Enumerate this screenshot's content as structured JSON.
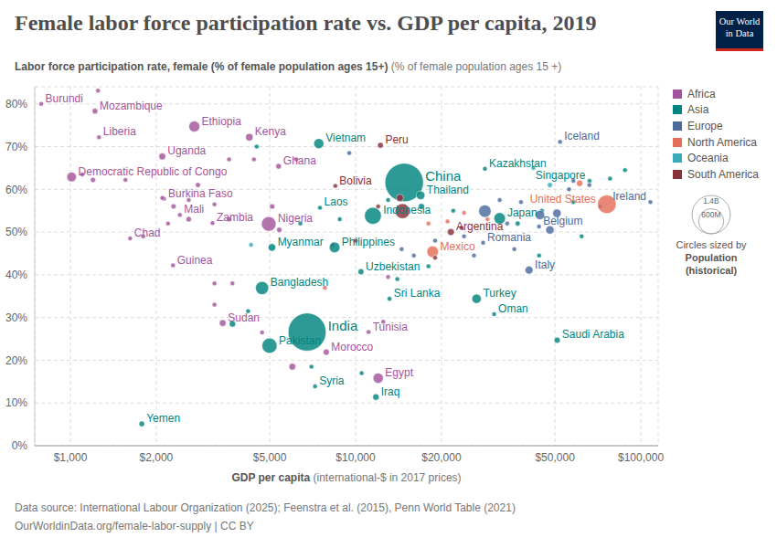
{
  "chart_data": {
    "type": "scatter",
    "title": "Female labor force participation rate vs. GDP per capita, 2019",
    "subtitle": "Labor force participation rate, female (% of female population ages 15+)",
    "subtitle_unit": "(% of female population ages 15 +)",
    "xlabel": "GDP per capita",
    "xlabel_unit": "(international-$ in 2017 prices)",
    "source": "Data source: International Labour Organization (2025); Feenstra et al. (2015), Penn World Table (2021)",
    "footer": "OurWorldinData.org/female-labor-supply | CC BY",
    "logo": [
      "Our World",
      "in Data"
    ],
    "log": "x",
    "grid": true,
    "legend": "right",
    "xlim": [
      750,
      115000
    ],
    "xticks": [
      {
        "value": 1000,
        "label": "$1,000"
      },
      {
        "value": 2000,
        "label": "$2,000"
      },
      {
        "value": 5000,
        "label": "$5,000"
      },
      {
        "value": 10000,
        "label": "$10,000"
      },
      {
        "value": 20000,
        "label": "$20,000"
      },
      {
        "value": 50000,
        "label": "$50,000"
      },
      {
        "value": 100000,
        "label": "$100,000"
      }
    ],
    "ylim": [
      0,
      84
    ],
    "yticks": [
      {
        "value": 0,
        "label": "0%"
      },
      {
        "value": 10,
        "label": "10%"
      },
      {
        "value": 20,
        "label": "20%"
      },
      {
        "value": 30,
        "label": "30%"
      },
      {
        "value": 40,
        "label": "40%"
      },
      {
        "value": 50,
        "label": "50%"
      },
      {
        "value": 60,
        "label": "60%"
      },
      {
        "value": 70,
        "label": "70%"
      },
      {
        "value": 80,
        "label": "80%"
      }
    ],
    "size_legend": {
      "title": [
        "Circles sized by",
        "Population",
        "(historical)"
      ],
      "circles": [
        {
          "value": 1400000000,
          "label": "1.4B"
        },
        {
          "value": 600000000,
          "label": "600M"
        }
      ]
    },
    "series": [
      {
        "name": "Africa",
        "color": "#a2559c",
        "values": [
          {
            "x": 790,
            "y": 80.0,
            "population": 11500000,
            "label": "Burundi"
          },
          {
            "x": 1220,
            "y": 78.3,
            "population": 30000000,
            "label": "Mozambique"
          },
          {
            "x": 1260,
            "y": 72.2,
            "population": 4900000,
            "label": "Liberia"
          },
          {
            "x": 2720,
            "y": 74.7,
            "population": 112000000,
            "label": "Ethiopia"
          },
          {
            "x": 4240,
            "y": 72.2,
            "population": 52000000,
            "label": "Kenya"
          },
          {
            "x": 2100,
            "y": 67.7,
            "population": 44000000,
            "label": "Uganda"
          },
          {
            "x": 1010,
            "y": 62.9,
            "population": 87000000,
            "label": "Democratic Republic of Congo"
          },
          {
            "x": 5370,
            "y": 65.4,
            "population": 30000000,
            "label": "Ghana"
          },
          {
            "x": 2130,
            "y": 57.8,
            "population": 20000000,
            "label": "Burkina Faso"
          },
          {
            "x": 2420,
            "y": 54.0,
            "population": 20000000,
            "label": "Mali"
          },
          {
            "x": 3150,
            "y": 52.1,
            "population": 18000000,
            "label": "Zambia"
          },
          {
            "x": 1620,
            "y": 48.5,
            "population": 16000000,
            "label": "Chad"
          },
          {
            "x": 4960,
            "y": 51.9,
            "population": 201000000,
            "label": "Nigeria"
          },
          {
            "x": 2290,
            "y": 42.2,
            "population": 12800000,
            "label": "Guinea"
          },
          {
            "x": 3420,
            "y": 28.7,
            "population": 43000000,
            "label": "Sudan"
          },
          {
            "x": 7890,
            "y": 21.9,
            "population": 36000000,
            "label": "Morocco"
          },
          {
            "x": 12000,
            "y": 15.8,
            "population": 100000000,
            "label": "Egypt"
          },
          {
            "x": 11100,
            "y": 26.6,
            "population": 11700000,
            "label": "Tunisia"
          },
          {
            "x": 1250,
            "y": 83.1,
            "population": 15000000
          },
          {
            "x": 1100,
            "y": 63.5,
            "population": 12000000
          },
          {
            "x": 1200,
            "y": 62.2,
            "population": 25000000
          },
          {
            "x": 1560,
            "y": 62.2,
            "population": 8000000
          },
          {
            "x": 2100,
            "y": 58,
            "population": 20000000
          },
          {
            "x": 2300,
            "y": 56,
            "population": 25000000
          },
          {
            "x": 2600,
            "y": 57.5,
            "population": 6000000
          },
          {
            "x": 2600,
            "y": 53,
            "population": 28000000
          },
          {
            "x": 2200,
            "y": 52,
            "population": 5000000
          },
          {
            "x": 3200,
            "y": 56.5,
            "population": 4000000
          },
          {
            "x": 3600,
            "y": 67,
            "population": 4500000
          },
          {
            "x": 1800,
            "y": 49,
            "population": 8000000
          },
          {
            "x": 3200,
            "y": 38,
            "population": 2500000
          },
          {
            "x": 3700,
            "y": 38,
            "population": 5000000
          },
          {
            "x": 3200,
            "y": 33,
            "population": 4400000
          },
          {
            "x": 4700,
            "y": 26.5,
            "population": 2500000
          },
          {
            "x": 5100,
            "y": 56,
            "population": 26000000
          },
          {
            "x": 5400,
            "y": 50.5,
            "population": 26000000
          },
          {
            "x": 6000,
            "y": 18.5,
            "population": 43000000
          },
          {
            "x": 12500,
            "y": 29,
            "population": 4000000
          },
          {
            "x": 13000,
            "y": 39.5,
            "population": 2300000
          },
          {
            "x": 6200,
            "y": 67,
            "population": 1200000
          },
          {
            "x": 4400,
            "y": 67,
            "population": 7000000
          },
          {
            "x": 2800,
            "y": 61,
            "population": 24000000
          },
          {
            "x": 3600,
            "y": 53,
            "population": 25000000
          },
          {
            "x": 8300,
            "y": 47,
            "population": 6800000
          }
        ]
      },
      {
        "name": "Asia",
        "color": "#00847e",
        "values": [
          {
            "x": 7430,
            "y": 70.7,
            "population": 96000000,
            "label": "Vietnam"
          },
          {
            "x": 14800,
            "y": 61.6,
            "population": 1400000000,
            "label": "China"
          },
          {
            "x": 16900,
            "y": 58.6,
            "population": 70000000,
            "label": "Thailand"
          },
          {
            "x": 28400,
            "y": 64.8,
            "population": 18500000,
            "label": "Kazakhstan"
          },
          {
            "x": 66100,
            "y": 62.0,
            "population": 5800000,
            "label": "Singapore"
          },
          {
            "x": 7500,
            "y": 55.7,
            "population": 7200000,
            "label": "Laos"
          },
          {
            "x": 11500,
            "y": 53.8,
            "population": 270000000,
            "label": "Indonesia"
          },
          {
            "x": 32000,
            "y": 53.2,
            "population": 126000000,
            "label": "Japan"
          },
          {
            "x": 5090,
            "y": 46.4,
            "population": 54000000,
            "label": "Myanmar"
          },
          {
            "x": 8440,
            "y": 46.4,
            "population": 108000000,
            "label": "Philippines"
          },
          {
            "x": 4700,
            "y": 36.9,
            "population": 163000000,
            "label": "Bangladesh"
          },
          {
            "x": 10440,
            "y": 40.7,
            "population": 33000000,
            "label": "Uzbekistan"
          },
          {
            "x": 13150,
            "y": 34.4,
            "population": 21000000,
            "label": "Sri Lanka"
          },
          {
            "x": 26550,
            "y": 34.4,
            "population": 83000000,
            "label": "Turkey"
          },
          {
            "x": 30600,
            "y": 30.8,
            "population": 5000000,
            "label": "Oman"
          },
          {
            "x": 6760,
            "y": 26.6,
            "population": 1366000000,
            "label": "India"
          },
          {
            "x": 4990,
            "y": 23.4,
            "population": 217000000,
            "label": "Pakistan"
          },
          {
            "x": 50900,
            "y": 24.7,
            "population": 34000000,
            "label": "Saudi Arabia"
          },
          {
            "x": 7210,
            "y": 13.9,
            "population": 17000000,
            "label": "Syria"
          },
          {
            "x": 11780,
            "y": 11.4,
            "population": 39000000,
            "label": "Iraq"
          },
          {
            "x": 1780,
            "y": 5.1,
            "population": 29000000,
            "label": "Yemen"
          },
          {
            "x": 4500,
            "y": 70,
            "population": 10000000
          },
          {
            "x": 3700,
            "y": 28.5,
            "population": 38000000
          },
          {
            "x": 4200,
            "y": 31.5,
            "population": 5000000
          },
          {
            "x": 6400,
            "y": 52,
            "population": 1300000
          },
          {
            "x": 8800,
            "y": 53,
            "population": 3000000
          },
          {
            "x": 7000,
            "y": 18.5,
            "population": 10000000
          },
          {
            "x": 10500,
            "y": 17,
            "population": 6000000
          },
          {
            "x": 13000,
            "y": 57.5,
            "population": 3000000
          },
          {
            "x": 17000,
            "y": 56,
            "population": 32000000
          },
          {
            "x": 22000,
            "y": 55,
            "population": 3000000
          },
          {
            "x": 37000,
            "y": 52,
            "population": 23000000
          },
          {
            "x": 45000,
            "y": 55,
            "population": 3000000
          },
          {
            "x": 58000,
            "y": 57,
            "population": 9000000
          },
          {
            "x": 78000,
            "y": 62.5,
            "population": 4200000
          },
          {
            "x": 88000,
            "y": 64.5,
            "population": 2800000
          },
          {
            "x": 14000,
            "y": 39,
            "population": 4000000
          },
          {
            "x": 18000,
            "y": 42,
            "population": 10000000
          },
          {
            "x": 62000,
            "y": 49,
            "population": 500000
          },
          {
            "x": 44000,
            "y": 44.5,
            "population": 4000000
          }
        ]
      },
      {
        "name": "Europe",
        "color": "#4c6a9c",
        "values": [
          {
            "x": 52100,
            "y": 71.1,
            "population": 360000,
            "label": "Iceland"
          },
          {
            "x": 108000,
            "y": 57.0,
            "population": 4900000,
            "label": "Ireland"
          },
          {
            "x": 43950,
            "y": 51.3,
            "population": 11500000,
            "label": "Belgium"
          },
          {
            "x": 27990,
            "y": 47.5,
            "population": 19400000,
            "label": "Romania"
          },
          {
            "x": 40550,
            "y": 41.1,
            "population": 60000000,
            "label": "Italy"
          },
          {
            "x": 9500,
            "y": 68.5,
            "population": 2500000
          },
          {
            "x": 19000,
            "y": 48,
            "population": 7000000
          },
          {
            "x": 24000,
            "y": 49,
            "population": 4000000
          },
          {
            "x": 26000,
            "y": 44.5,
            "population": 10000000
          },
          {
            "x": 28400,
            "y": 54.9,
            "population": 145000000
          },
          {
            "x": 32000,
            "y": 57.5,
            "population": 10000000
          },
          {
            "x": 34000,
            "y": 52,
            "population": 10000000
          },
          {
            "x": 36000,
            "y": 46,
            "population": 10700000
          },
          {
            "x": 38000,
            "y": 57,
            "population": 5400000
          },
          {
            "x": 44300,
            "y": 54,
            "population": 83000000
          },
          {
            "x": 50800,
            "y": 54.4,
            "population": 67000000
          },
          {
            "x": 48000,
            "y": 50.5,
            "population": 65000000
          },
          {
            "x": 56000,
            "y": 60,
            "population": 10000000
          },
          {
            "x": 58000,
            "y": 62,
            "population": 5400000
          },
          {
            "x": 66000,
            "y": 61,
            "population": 8600000
          },
          {
            "x": 72000,
            "y": 56,
            "population": 600000
          },
          {
            "x": 16000,
            "y": 44.5,
            "population": 6900000
          },
          {
            "x": 14500,
            "y": 46,
            "population": 2900000
          }
        ]
      },
      {
        "name": "North America",
        "color": "#e56e5a",
        "values": [
          {
            "x": 76000,
            "y": 56.5,
            "population": 329000000,
            "label": "United States"
          },
          {
            "x": 18620,
            "y": 45.4,
            "population": 127000000,
            "label": "Mexico"
          },
          {
            "x": 29000,
            "y": 53,
            "population": 3000000
          },
          {
            "x": 18000,
            "y": 52,
            "population": 10000000
          },
          {
            "x": 24000,
            "y": 54.5,
            "population": 3000000
          },
          {
            "x": 21000,
            "y": 52.5,
            "population": 5000000
          },
          {
            "x": 7800,
            "y": 37,
            "population": 400000
          },
          {
            "x": 61000,
            "y": 61.4,
            "population": 38000000
          }
        ]
      },
      {
        "name": "Oceania",
        "color": "#38aaba",
        "values": [
          {
            "x": 48000,
            "y": 61,
            "population": 25000000
          },
          {
            "x": 42000,
            "y": 65,
            "population": 5000000
          },
          {
            "x": 4300,
            "y": 47,
            "population": 9000000
          }
        ]
      },
      {
        "name": "South America",
        "color": "#883039",
        "values": [
          {
            "x": 12220,
            "y": 70.3,
            "population": 32500000,
            "label": "Peru"
          },
          {
            "x": 8490,
            "y": 60.8,
            "population": 11500000,
            "label": "Bolivia"
          },
          {
            "x": 21570,
            "y": 50.0,
            "population": 44900000,
            "label": "Argentina"
          },
          {
            "x": 14600,
            "y": 54.9,
            "population": 211000000
          },
          {
            "x": 14300,
            "y": 58,
            "population": 50000000
          },
          {
            "x": 23500,
            "y": 51,
            "population": 19000000
          },
          {
            "x": 12000,
            "y": 56,
            "population": 17000000
          },
          {
            "x": 10000,
            "y": 48,
            "population": 7000000
          },
          {
            "x": 19000,
            "y": 44,
            "population": 3500000
          }
        ]
      }
    ]
  }
}
